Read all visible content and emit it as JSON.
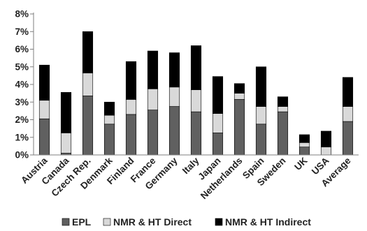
{
  "chart_data": {
    "type": "bar",
    "stacked": true,
    "title": "",
    "xlabel": "",
    "ylabel": "",
    "categories": [
      "Austria",
      "Canada",
      "Czech Rep.",
      "Denmark",
      "Finland",
      "France",
      "Germany",
      "Italy",
      "Japan",
      "Netherlands",
      "Spain",
      "Sweden",
      "UK",
      "USA",
      "Average"
    ],
    "series": [
      {
        "name": "EPL",
        "color": "#606060",
        "values": [
          2.05,
          0.1,
          3.35,
          1.75,
          2.3,
          2.55,
          2.75,
          2.45,
          1.25,
          3.15,
          1.75,
          2.45,
          0.45,
          0.0,
          1.9
        ]
      },
      {
        "name": "NMR & HT Direct",
        "color": "#d9d9d9",
        "values": [
          1.05,
          1.15,
          1.3,
          0.5,
          0.85,
          1.2,
          1.1,
          1.25,
          1.1,
          0.35,
          1.0,
          0.3,
          0.25,
          0.45,
          0.85
        ]
      },
      {
        "name": "NMR & HT Indirect",
        "color": "#000000",
        "values": [
          2.0,
          2.3,
          2.35,
          0.75,
          2.15,
          2.15,
          1.95,
          2.5,
          2.1,
          0.55,
          2.25,
          0.55,
          0.45,
          0.9,
          1.65
        ]
      }
    ],
    "ylim": [
      0,
      8
    ],
    "yticks": [
      "0%",
      "1%",
      "2%",
      "3%",
      "4%",
      "5%",
      "6%",
      "7%",
      "8%"
    ],
    "y_unit": "%",
    "grid": false,
    "legend_position": "bottom"
  }
}
